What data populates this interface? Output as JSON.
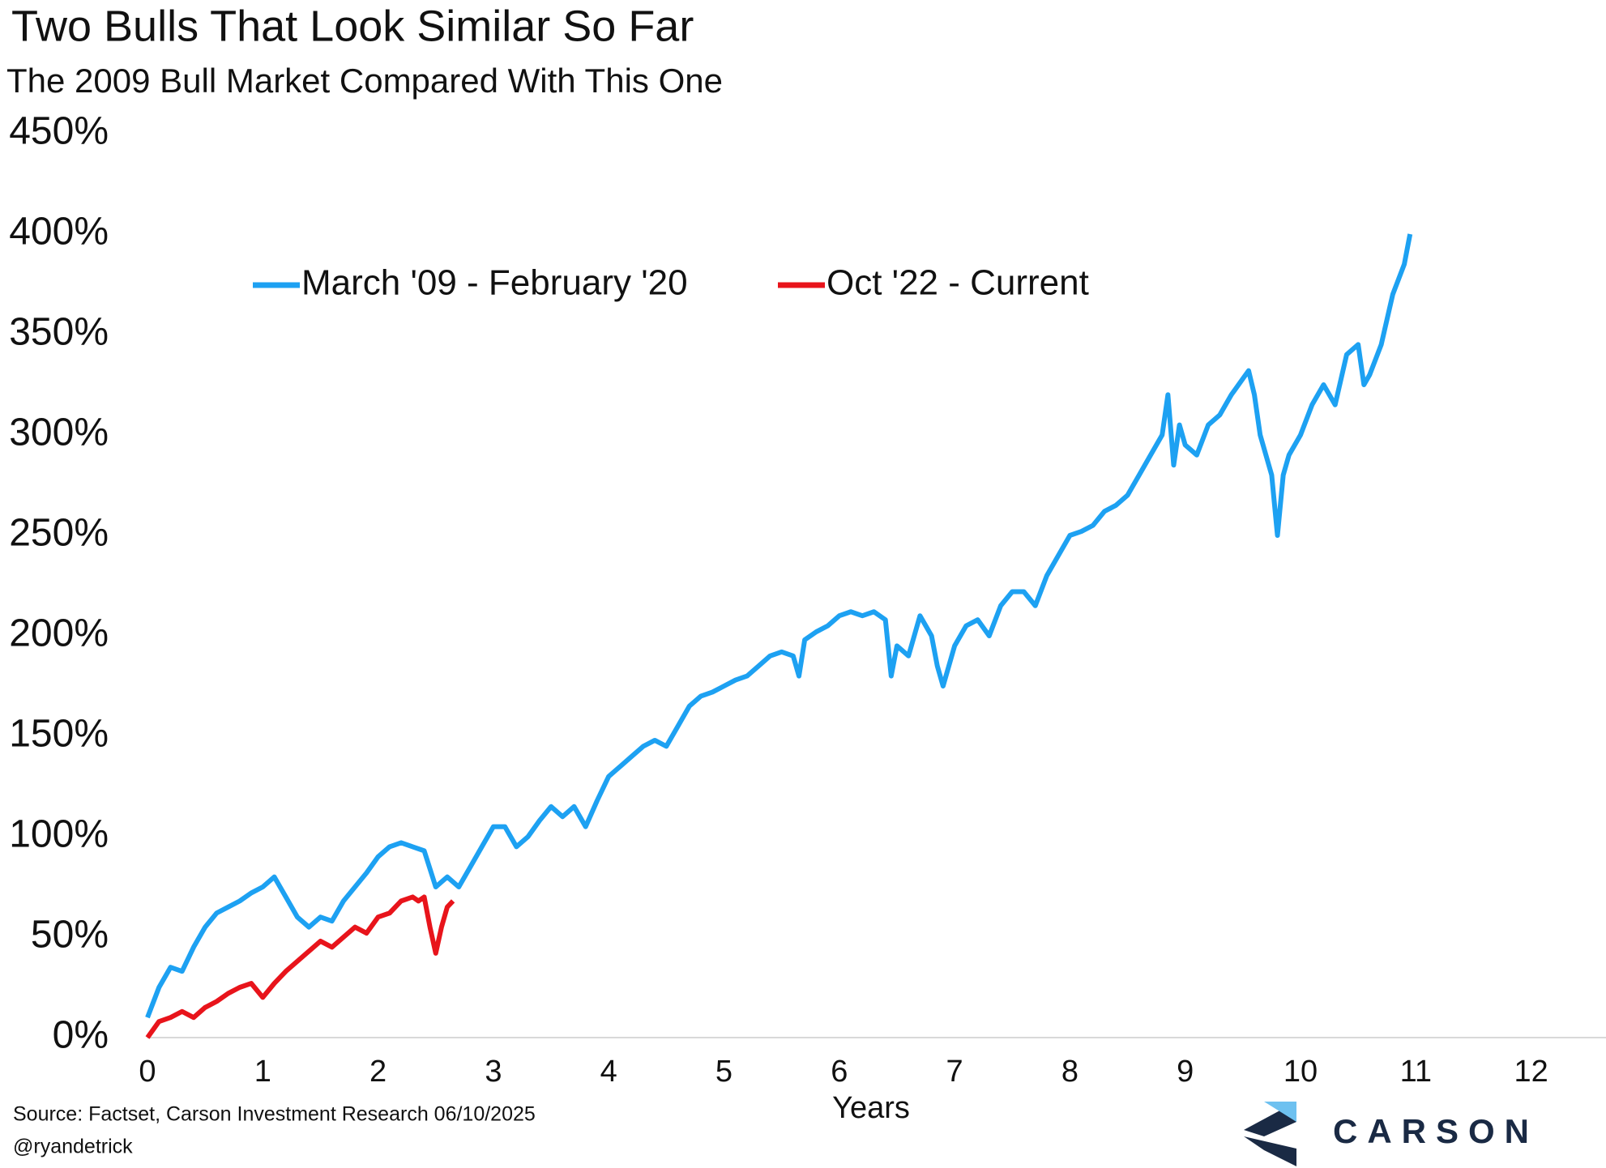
{
  "chart_data": {
    "type": "line",
    "title": "Two Bulls That Look Similar So Far",
    "subtitle": "The 2009 Bull Market Compared With This One",
    "xlabel": "Years",
    "source": "Source: Factset, Carson Investment Research 06/10/2025",
    "handle": "@ryandetrick",
    "logo": "CARSON",
    "xlim": [
      0,
      12.5
    ],
    "xticks": [
      0,
      1,
      2,
      3,
      4,
      5,
      6,
      7,
      8,
      9,
      10,
      11,
      12
    ],
    "ylim": [
      0,
      450
    ],
    "yticks": [
      {
        "value": 0,
        "label": "0%"
      },
      {
        "value": 50,
        "label": "50%"
      },
      {
        "value": 100,
        "label": "100%"
      },
      {
        "value": 150,
        "label": "150%"
      },
      {
        "value": 200,
        "label": "200%"
      },
      {
        "value": 250,
        "label": "250%"
      },
      {
        "value": 300,
        "label": "300%"
      },
      {
        "value": 350,
        "label": "350%"
      },
      {
        "value": 400,
        "label": "400%"
      },
      {
        "value": 450,
        "label": "450%"
      }
    ],
    "grid": false,
    "legend": "top",
    "series": [
      {
        "name": "March '09 - February '20",
        "color": "#1da1f2",
        "x": [
          0,
          0.1,
          0.2,
          0.3,
          0.4,
          0.5,
          0.6,
          0.7,
          0.8,
          0.9,
          1.0,
          1.1,
          1.2,
          1.3,
          1.4,
          1.5,
          1.6,
          1.7,
          1.8,
          1.9,
          2.0,
          2.1,
          2.2,
          2.3,
          2.4,
          2.5,
          2.6,
          2.7,
          2.8,
          2.9,
          3.0,
          3.1,
          3.2,
          3.3,
          3.4,
          3.5,
          3.6,
          3.7,
          3.8,
          3.9,
          4.0,
          4.1,
          4.2,
          4.3,
          4.4,
          4.5,
          4.6,
          4.7,
          4.8,
          4.9,
          5.0,
          5.1,
          5.2,
          5.3,
          5.4,
          5.5,
          5.6,
          5.65,
          5.7,
          5.8,
          5.9,
          6.0,
          6.1,
          6.2,
          6.3,
          6.4,
          6.45,
          6.5,
          6.6,
          6.7,
          6.8,
          6.85,
          6.9,
          7.0,
          7.1,
          7.2,
          7.3,
          7.4,
          7.5,
          7.6,
          7.7,
          7.8,
          7.9,
          8.0,
          8.1,
          8.2,
          8.3,
          8.4,
          8.5,
          8.6,
          8.7,
          8.8,
          8.85,
          8.9,
          8.95,
          9.0,
          9.1,
          9.2,
          9.3,
          9.4,
          9.5,
          9.55,
          9.6,
          9.65,
          9.7,
          9.75,
          9.8,
          9.85,
          9.9,
          10.0,
          10.1,
          10.2,
          10.3,
          10.4,
          10.5,
          10.55,
          10.6,
          10.7,
          10.8,
          10.9,
          10.95
        ],
        "values": [
          10,
          25,
          35,
          33,
          45,
          55,
          62,
          65,
          68,
          72,
          75,
          80,
          70,
          60,
          55,
          60,
          58,
          68,
          75,
          82,
          90,
          95,
          97,
          95,
          93,
          75,
          80,
          75,
          85,
          95,
          105,
          105,
          95,
          100,
          108,
          115,
          110,
          115,
          105,
          118,
          130,
          135,
          140,
          145,
          148,
          145,
          155,
          165,
          170,
          172,
          175,
          178,
          180,
          185,
          190,
          192,
          190,
          180,
          198,
          202,
          205,
          210,
          212,
          210,
          212,
          208,
          180,
          195,
          190,
          210,
          200,
          185,
          175,
          195,
          205,
          208,
          200,
          215,
          222,
          222,
          215,
          230,
          240,
          250,
          252,
          255,
          262,
          265,
          270,
          280,
          290,
          300,
          320,
          285,
          305,
          295,
          290,
          305,
          310,
          320,
          328,
          332,
          320,
          300,
          290,
          280,
          250,
          280,
          290,
          300,
          315,
          325,
          315,
          340,
          345,
          325,
          330,
          345,
          370,
          385,
          400
        ]
      },
      {
        "name": "Oct '22 - Current",
        "color": "#e8141b",
        "x": [
          0,
          0.1,
          0.2,
          0.3,
          0.4,
          0.5,
          0.6,
          0.7,
          0.8,
          0.9,
          1.0,
          1.1,
          1.2,
          1.3,
          1.4,
          1.5,
          1.6,
          1.7,
          1.8,
          1.9,
          2.0,
          2.1,
          2.2,
          2.3,
          2.35,
          2.4,
          2.45,
          2.5,
          2.55,
          2.6,
          2.65
        ],
        "values": [
          0,
          8,
          10,
          13,
          10,
          15,
          18,
          22,
          25,
          27,
          20,
          27,
          33,
          38,
          43,
          48,
          45,
          50,
          55,
          52,
          60,
          62,
          68,
          70,
          68,
          70,
          55,
          42,
          55,
          65,
          68
        ]
      }
    ]
  }
}
